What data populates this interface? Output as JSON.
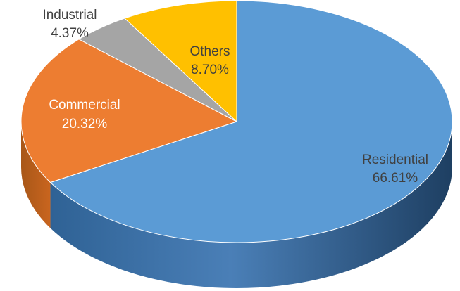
{
  "chart_data": {
    "type": "pie",
    "three_d": true,
    "title": "",
    "legend": "none",
    "slices": [
      {
        "name": "Residential",
        "value": 66.61,
        "label": "66.61%",
        "color": "#5B9BD5"
      },
      {
        "name": "Commercial",
        "value": 20.32,
        "label": "20.32%",
        "color": "#ED7D31"
      },
      {
        "name": "Industrial",
        "value": 4.37,
        "label": "4.37%",
        "color": "#A5A5A5"
      },
      {
        "name": "Others",
        "value": 8.7,
        "label": "8.70%",
        "color": "#FFC000"
      }
    ]
  }
}
